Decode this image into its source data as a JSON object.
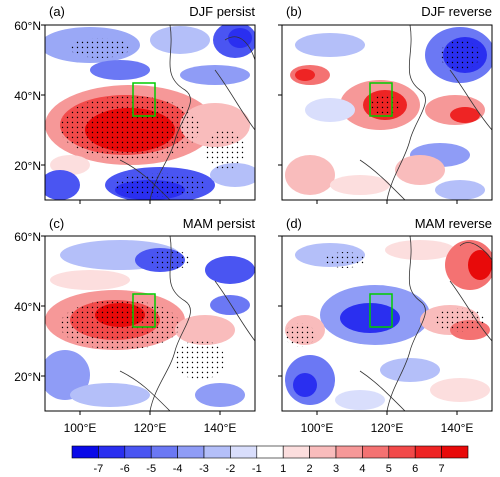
{
  "figure": {
    "panels": [
      {
        "id": "a",
        "label": "(a)",
        "title": "DJF persist"
      },
      {
        "id": "b",
        "label": "(b)",
        "title": "DJF reverse"
      },
      {
        "id": "c",
        "label": "(c)",
        "title": "MAM persist"
      },
      {
        "id": "d",
        "label": "(d)",
        "title": "MAM reverse"
      }
    ],
    "lon_ticks": [
      "100°E",
      "120°E",
      "140°E"
    ],
    "lat_ticks": [
      "60°N",
      "40°N",
      "20°N"
    ],
    "extent": {
      "lon": [
        90,
        150
      ],
      "lat": [
        10,
        60
      ]
    },
    "region_box": {
      "lon": [
        115,
        120
      ],
      "lat": [
        34,
        42
      ],
      "color": "#00cc00"
    },
    "colorbar": {
      "labels": [
        "-7",
        "-6",
        "-5",
        "-4",
        "-3",
        "-2",
        "-1",
        "1",
        "2",
        "3",
        "4",
        "5",
        "6",
        "7"
      ],
      "colors": [
        "#0a0ae8",
        "#2a2ff0",
        "#4a55f2",
        "#6b78f4",
        "#8f9cf6",
        "#b4bff9",
        "#d9defc",
        "#ffffff",
        "#fcdede",
        "#f9bcbc",
        "#f69898",
        "#f47272",
        "#f24a4a",
        "#ee2424",
        "#e80a0a"
      ]
    }
  }
}
